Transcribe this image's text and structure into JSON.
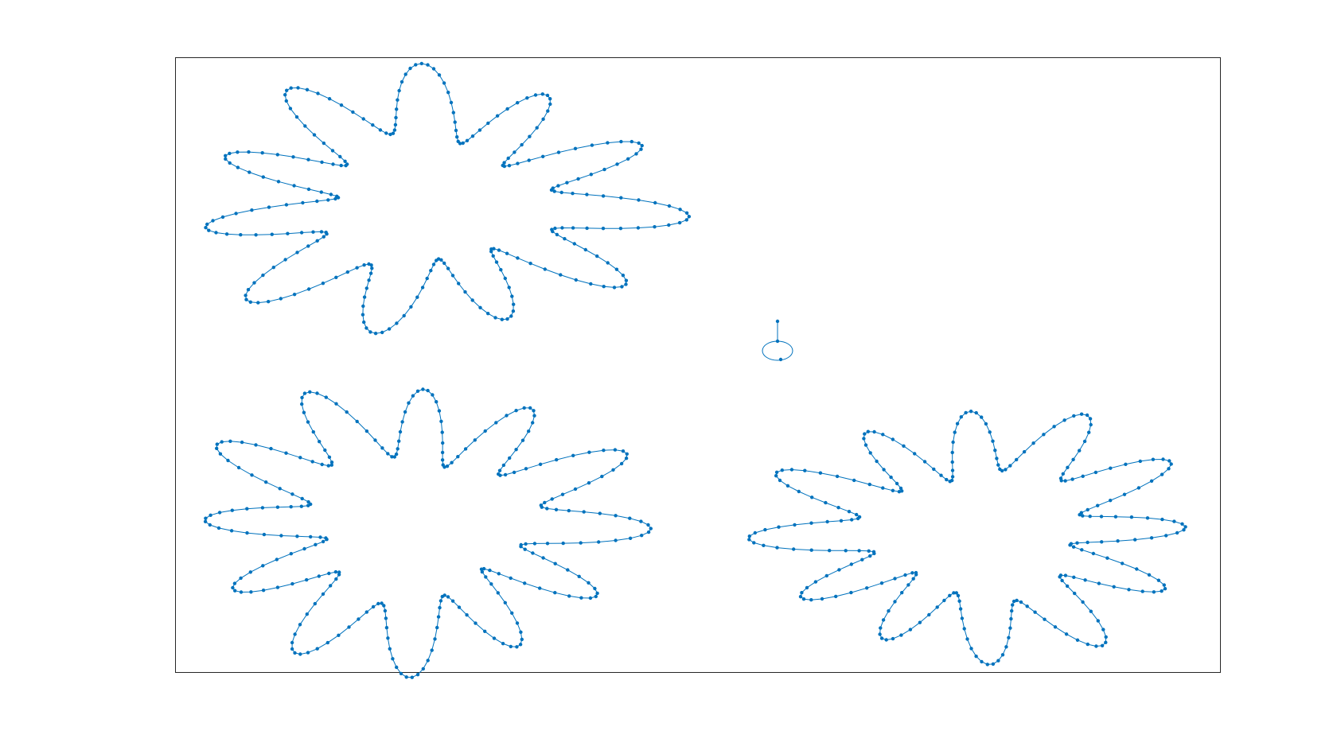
{
  "figure": {
    "background": "#ffffff",
    "frame_color": "#262626",
    "graph_color": "#0072bd"
  },
  "components": [
    {
      "id": "component-1",
      "shape": "closed-loop"
    },
    {
      "id": "component-2",
      "shape": "closed-loop"
    },
    {
      "id": "component-3",
      "shape": "closed-loop"
    },
    {
      "id": "component-4",
      "shape": "node-with-self-loop"
    }
  ]
}
